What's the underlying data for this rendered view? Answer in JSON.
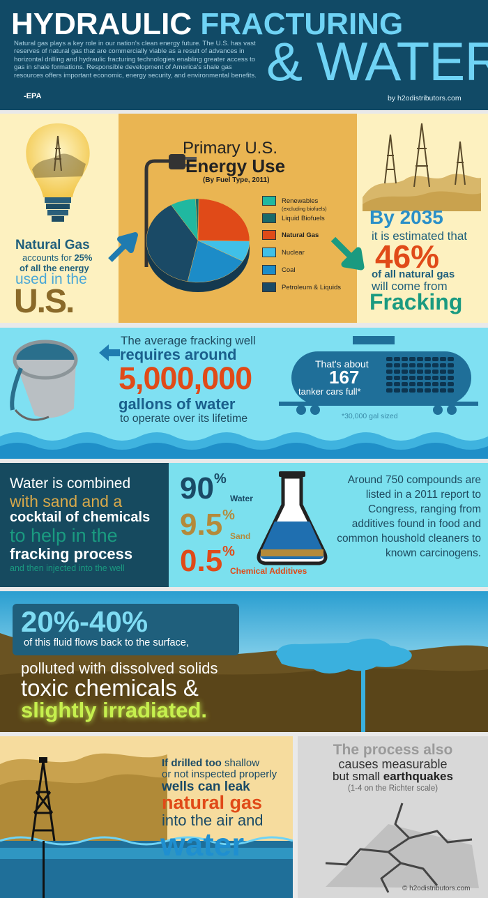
{
  "header": {
    "title_a": "HYDRAULIC ",
    "title_b": "FRACTURING",
    "subtitle": "& WATER",
    "intro": "Natural gas plays a key role in our nation's clean energy future. The U.S. has vast reserves of natural gas that are commercially viable as a result of advances in horizontal drilling and hydraulic fracturing technologies enabling greater access to gas in shale formations. Responsible development of America's shale gas resources offers important economic, energy security, and environmental benefits.",
    "attribution": "-EPA",
    "byline": "by h2odistributors.com"
  },
  "energy": {
    "ng_title": "Natural Gas",
    "ng_accounts": "accounts for ",
    "ng_pct": "25%",
    "ng_of": "of all the energy",
    "ng_used": "used in the",
    "ng_us": "U.S.",
    "chart_title_1": "Primary U.S.",
    "chart_title_2": "Energy Use",
    "chart_sub": "(By Fuel Type, 2011)",
    "legend": [
      {
        "label": "Renewables",
        "note": "(excluding biofuels)",
        "color": "#20b8a0"
      },
      {
        "label": "Liquid Biofuels",
        "note": "",
        "color": "#1a6a6a"
      },
      {
        "label": "Natural Gas",
        "note": "",
        "color": "#e04a18"
      },
      {
        "label": "Nuclear",
        "note": "",
        "color": "#40c0e8"
      },
      {
        "label": "Coal",
        "note": "",
        "color": "#1c8cc8"
      },
      {
        "label": "Petroleum & Liquids",
        "note": "",
        "color": "#1a4a66"
      }
    ],
    "proj_by": "By 2035",
    "proj_est": "it is estimated that",
    "proj_pct": "46%",
    "proj_of": "of all natural gas",
    "proj_will": "will come from",
    "proj_frack": "Fracking"
  },
  "water": {
    "line1": "The average fracking well",
    "line2": "requires around",
    "amount": "5,000,000",
    "line3": "gallons of water",
    "line4": "to operate over its lifetime",
    "tanker_1": "That's about",
    "tanker_num": "167",
    "tanker_2": "tanker cars full*",
    "footnote": "*30,000 gal sized"
  },
  "chem": {
    "l1": "Water is combined",
    "l2": "with sand and a",
    "l3": "cocktail of chemicals",
    "l4": "to help in the",
    "l5": "fracking process",
    "l6": "and then injected into the well",
    "p1": "90",
    "p1_label": "Water",
    "p2": "9.5",
    "p2_label": "Sand",
    "p3": "0.5",
    "p3_label": "Chemical Additives",
    "pct_sign": "%",
    "compounds": "Around 750 compounds are listed in a 2011 report to Congress, ranging from additives found in food and common houshold cleaners to known carcinogens."
  },
  "flow": {
    "pct": "20%-40%",
    "l1": "of this fluid flows back to the surface,",
    "l2": "polluted with dissolved solids",
    "l3": "toxic chemicals &",
    "l4": "slightly irradiated."
  },
  "leak": {
    "l1a": "If drilled too ",
    "l1b": "shallow",
    "l2": "or not inspected properly",
    "l3": "wells can leak",
    "l4": "natural gas",
    "l5": "into the air and",
    "l6": "water"
  },
  "quake": {
    "l1": "The process also",
    "l2": "causes measurable",
    "l3a": "but small ",
    "l3b": "earthquakes",
    "l4": "(1-4 on the Richter scale)",
    "credit": "© h2odistributors.com"
  },
  "chart_data": {
    "type": "pie",
    "title": "Primary U.S. Energy Use",
    "subtitle": "(By Fuel Type, 2011)",
    "categories": [
      "Renewables (excluding biofuels)",
      "Liquid Biofuels",
      "Natural Gas",
      "Nuclear",
      "Coal",
      "Petroleum & Liquids"
    ],
    "values": [
      8,
      1,
      25,
      8,
      20,
      38
    ],
    "legend": "right"
  }
}
